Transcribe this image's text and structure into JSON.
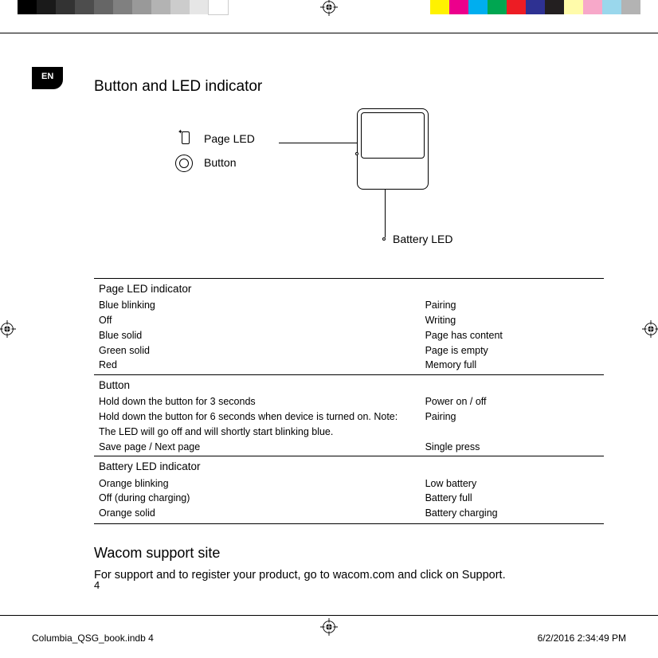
{
  "printer": {
    "grayscale": [
      {
        "w": 24,
        "c": "#000000"
      },
      {
        "w": 24,
        "c": "#1a1a1a"
      },
      {
        "w": 24,
        "c": "#333333"
      },
      {
        "w": 24,
        "c": "#4d4d4d"
      },
      {
        "w": 24,
        "c": "#666666"
      },
      {
        "w": 24,
        "c": "#808080"
      },
      {
        "w": 24,
        "c": "#999999"
      },
      {
        "w": 24,
        "c": "#b3b3b3"
      },
      {
        "w": 24,
        "c": "#cccccc"
      },
      {
        "w": 24,
        "c": "#e6e6e6"
      },
      {
        "w": 24,
        "c": "#ffffff"
      }
    ],
    "colors": [
      {
        "w": 24,
        "c": "#fff200"
      },
      {
        "w": 24,
        "c": "#ec008c"
      },
      {
        "w": 24,
        "c": "#00aeef"
      },
      {
        "w": 24,
        "c": "#00a651"
      },
      {
        "w": 24,
        "c": "#ed1c24"
      },
      {
        "w": 24,
        "c": "#2e3192"
      },
      {
        "w": 24,
        "c": "#231f20"
      },
      {
        "w": 24,
        "c": "#fffbaa"
      },
      {
        "w": 24,
        "c": "#f7a8c9"
      },
      {
        "w": 24,
        "c": "#9ad7ec"
      },
      {
        "w": 24,
        "c": "#b3b3b3"
      }
    ]
  },
  "lang_tab": "EN",
  "title": "Button and LED indicator",
  "diagram": {
    "page_led_label": "Page LED",
    "button_label": "Button",
    "battery_led_label": "Battery LED"
  },
  "tables": [
    {
      "header": "Page LED indicator",
      "rows": [
        {
          "l": "Blue blinking",
          "r": "Pairing"
        },
        {
          "l": "Off",
          "r": "Writing"
        },
        {
          "l": "Blue solid",
          "r": "Page has content"
        },
        {
          "l": "Green solid",
          "r": "Page is empty"
        },
        {
          "l": "Red",
          "r": "Memory full"
        }
      ]
    },
    {
      "header": "Button",
      "rows": [
        {
          "l": "Hold down the button for 3 seconds",
          "r": "Power on / off"
        },
        {
          "l": "Hold down the button for 6 seconds when device is turned on. Note: The LED will go off and will shortly start blinking blue.",
          "r": "Pairing"
        },
        {
          "l": "Save page / Next page",
          "r": "Single press"
        }
      ]
    },
    {
      "header": "Battery LED indicator",
      "rows": [
        {
          "l": "Orange blinking",
          "r": "Low battery"
        },
        {
          "l": "Off (during charging)",
          "r": "Battery full"
        },
        {
          "l": "Orange solid",
          "r": "Battery charging"
        }
      ]
    }
  ],
  "support": {
    "title": "Wacom support site",
    "text": "For support and to register your product, go to wacom.com and click on Support."
  },
  "page_number": "4",
  "footer": {
    "file": "Columbia_QSG_book.indb   4",
    "datetime": "6/2/2016   2:34:49 PM"
  }
}
